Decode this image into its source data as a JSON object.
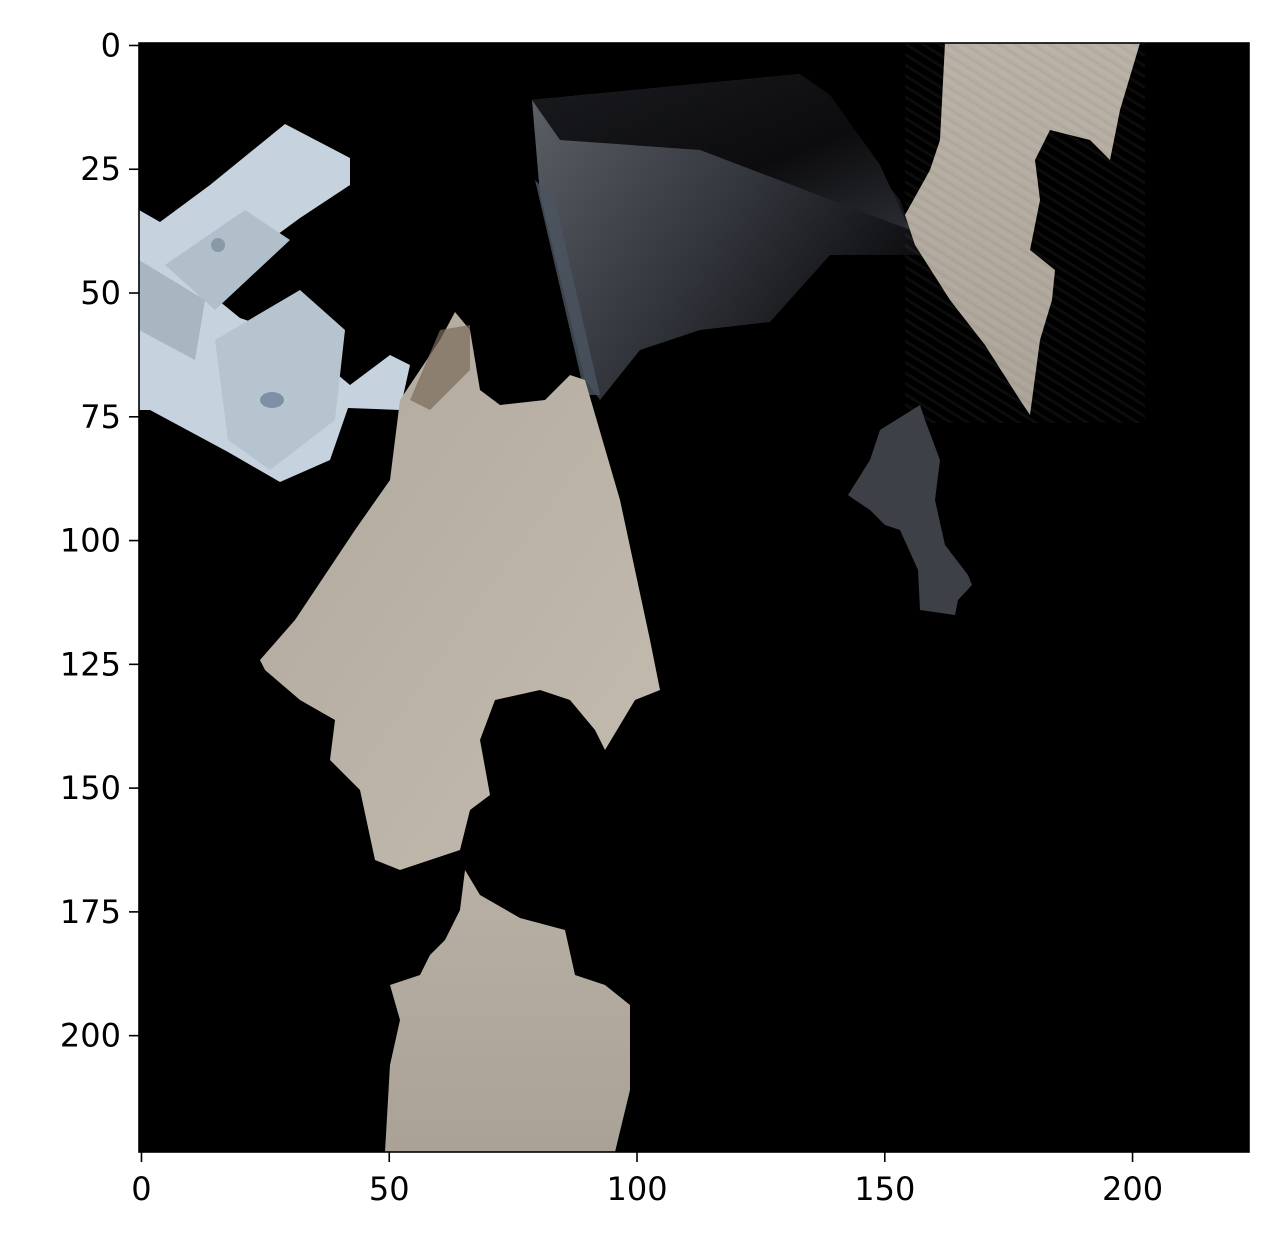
{
  "figure": {
    "kind": "masked-image-display",
    "description_colors": {
      "background": "#000000",
      "frame": "#000000",
      "page": "#ffffff",
      "wood": "#b9b2a6",
      "wood_dark": "#7a6e62",
      "keyboard": "#c8d6e2",
      "dark_object": "#3c4048",
      "dark_object_top": "#0f1013",
      "small_blob": "#3e4048"
    },
    "x_axis": {
      "range": [
        -0.5,
        223.5
      ],
      "ticks": [
        0,
        50,
        100,
        150,
        200
      ]
    },
    "y_axis": {
      "range": [
        223.5,
        -0.5
      ],
      "ticks": [
        0,
        25,
        50,
        75,
        100,
        125,
        150,
        175,
        200
      ]
    }
  }
}
